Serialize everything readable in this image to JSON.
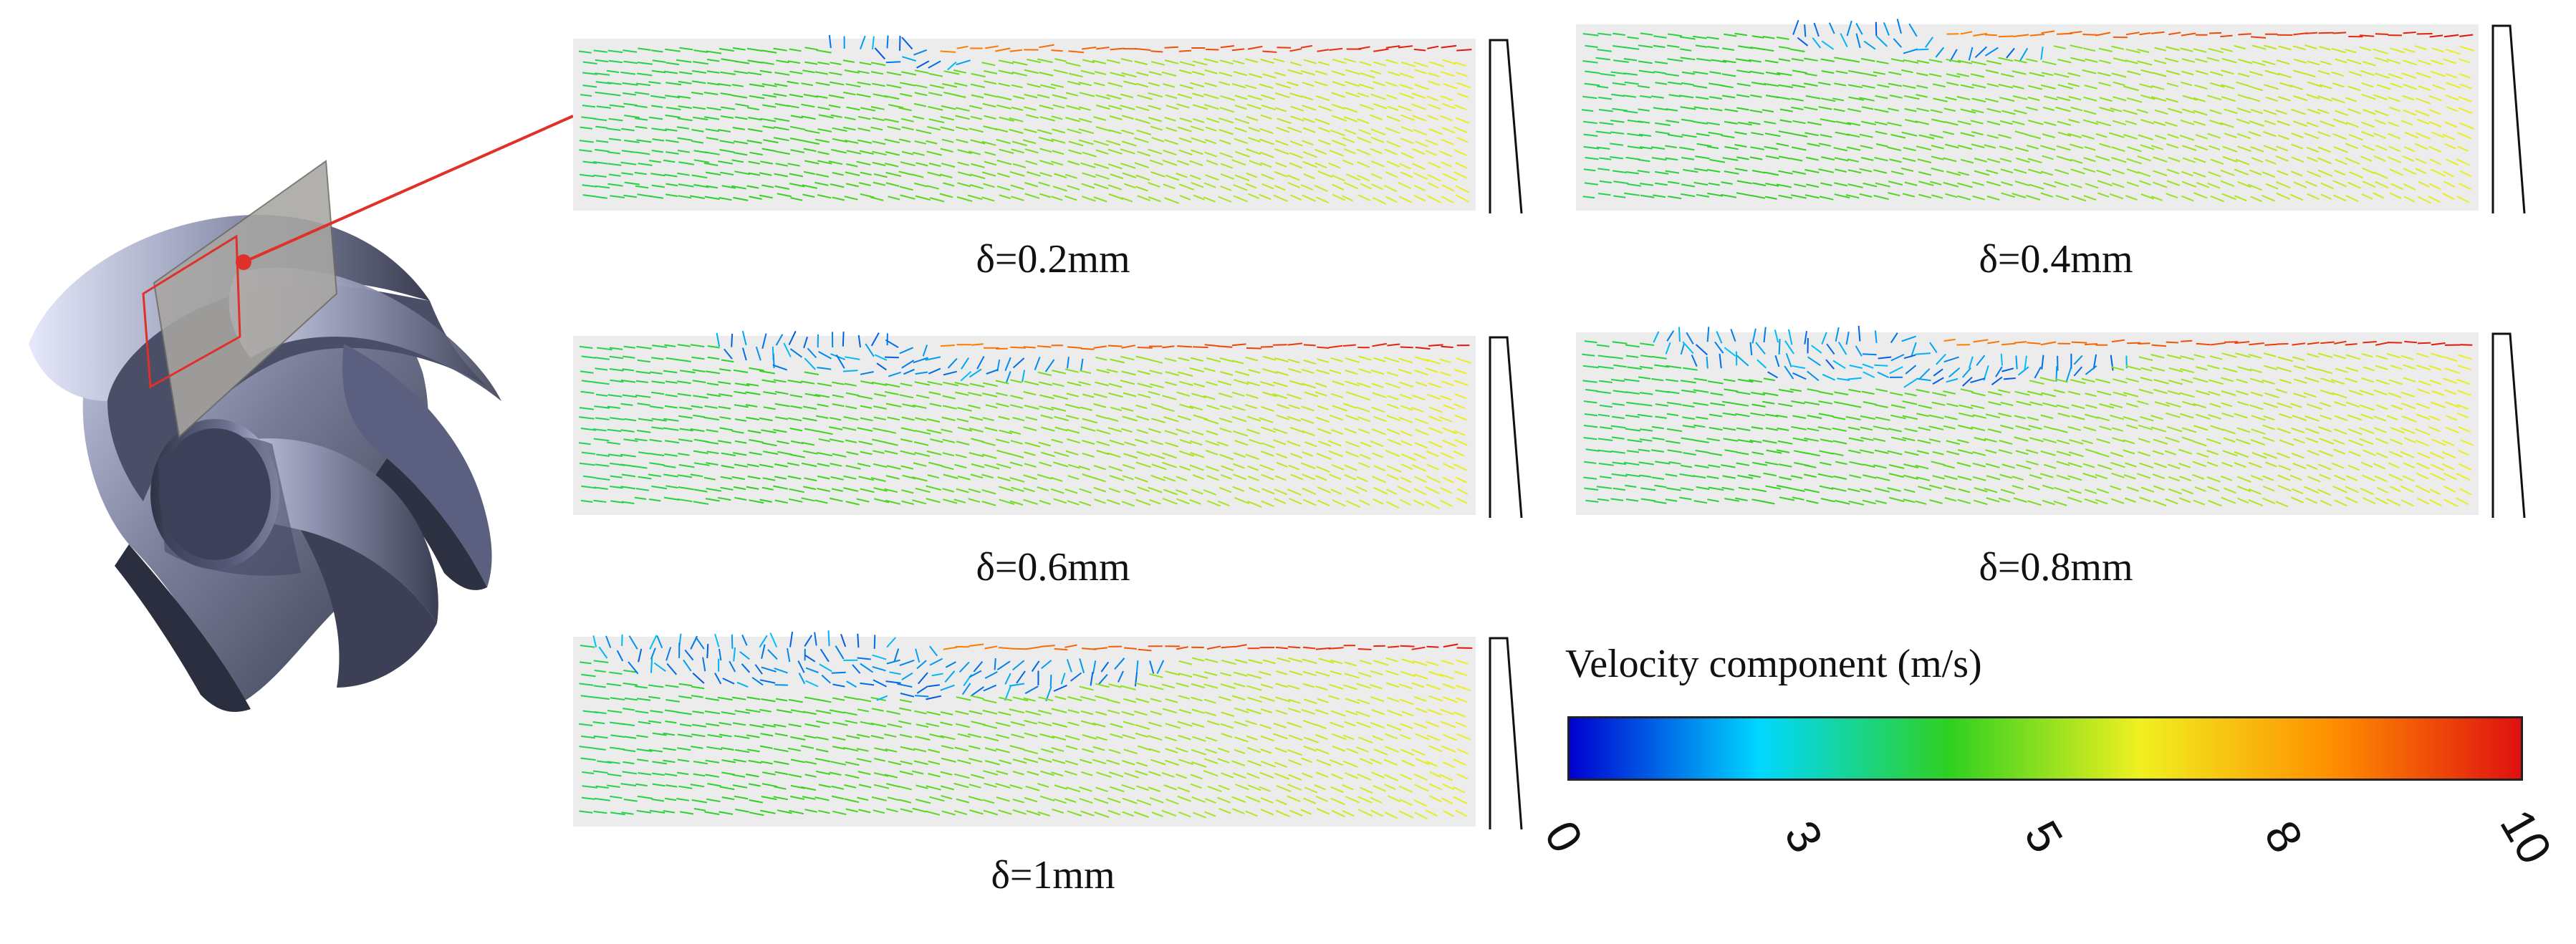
{
  "panels": [
    {
      "id": "d02",
      "label": "δ=0.2mm",
      "vortex": 0.15
    },
    {
      "id": "d04",
      "label": "δ=0.4mm",
      "vortex": 0.3
    },
    {
      "id": "d06",
      "label": "δ=0.6mm",
      "vortex": 0.55
    },
    {
      "id": "d08",
      "label": "δ=0.8mm",
      "vortex": 0.8
    },
    {
      "id": "d1",
      "label": "δ=1mm",
      "vortex": 1.0
    }
  ],
  "colorbar": {
    "title": "Velocity component (m/s)",
    "ticks": [
      "0",
      "3",
      "5",
      "8",
      "10"
    ],
    "tick_values": [
      0,
      3,
      5,
      8,
      10
    ],
    "min": 0,
    "max": 10,
    "colors": [
      "#0000d0",
      "#00d8ff",
      "#30d020",
      "#f0f020",
      "#ff9000",
      "#e01010"
    ]
  },
  "colors": {
    "impeller_dark": "#3a3d52",
    "impeller_light": "#d6daf2",
    "blade_plane": "#a8a6a2",
    "leader_line": "#e0302a",
    "panel_bg": "#ececec"
  }
}
